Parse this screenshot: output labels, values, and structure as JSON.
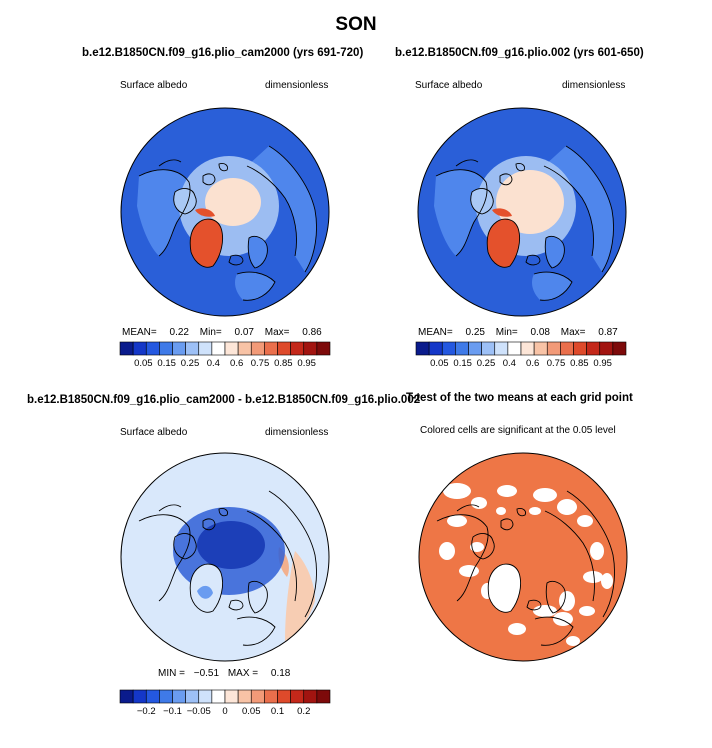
{
  "figure": {
    "title": "SON"
  },
  "panels": [
    {
      "title": "b.e12.B1850CN.f09_g16.plio_cam2000 (yrs 691-720)",
      "variable": "Surface albedo",
      "units": "dimensionless",
      "stats": {
        "mean_label": "MEAN=",
        "mean": "0.22",
        "min_label": "Min=",
        "min": "0.07",
        "max_label": "Max=",
        "max": "0.86"
      },
      "colorbar": {
        "labels": [
          "0.05",
          "0.15",
          "0.25",
          "0.4",
          "0.6",
          "0.75",
          "0.85",
          "0.95"
        ],
        "colors": [
          "#0a1b8c",
          "#1437c8",
          "#2458e0",
          "#3f7ae8",
          "#6a9cf0",
          "#9dc0f6",
          "#cfe2fb",
          "#ffffff",
          "#fde6d8",
          "#f8c3a6",
          "#f29a78",
          "#ea6f4c",
          "#de4a2b",
          "#c4281a",
          "#a21410",
          "#7d0a0a"
        ]
      }
    },
    {
      "title": "b.e12.B1850CN.f09_g16.plio.002 (yrs 601-650)",
      "variable": "Surface albedo",
      "units": "dimensionless",
      "stats": {
        "mean_label": "MEAN=",
        "mean": "0.25",
        "min_label": "Min=",
        "min": "0.08",
        "max_label": "Max=",
        "max": "0.87"
      },
      "colorbar": {
        "labels": [
          "0.05",
          "0.15",
          "0.25",
          "0.4",
          "0.6",
          "0.75",
          "0.85",
          "0.95"
        ],
        "colors": [
          "#0a1b8c",
          "#1437c8",
          "#2458e0",
          "#3f7ae8",
          "#6a9cf0",
          "#9dc0f6",
          "#cfe2fb",
          "#ffffff",
          "#fde6d8",
          "#f8c3a6",
          "#f29a78",
          "#ea6f4c",
          "#de4a2b",
          "#c4281a",
          "#a21410",
          "#7d0a0a"
        ]
      }
    },
    {
      "title": "b.e12.B1850CN.f09_g16.plio_cam2000 - b.e12.B1850CN.f09_g16.plio.002",
      "variable": "Surface albedo",
      "units": "dimensionless",
      "stats": {
        "min_label": "MIN =",
        "min": "−0.51",
        "max_label": "MAX =",
        "max": "0.18"
      },
      "colorbar": {
        "labels": [
          "−0.2",
          "−0.1",
          "−0.05",
          "0",
          "0.05",
          "0.1",
          "0.2"
        ],
        "colors": [
          "#0a1b8c",
          "#1437c8",
          "#2458e0",
          "#3f7ae8",
          "#6a9cf0",
          "#9dc0f6",
          "#cfe2fb",
          "#ffffff",
          "#fde6d8",
          "#f8c3a6",
          "#f29a78",
          "#ea6f4c",
          "#de4a2b",
          "#c4281a",
          "#a21410",
          "#7d0a0a"
        ]
      }
    },
    {
      "title": "T-test of the two means at each grid point",
      "subtitle": "Colored cells are significant at the 0.05 level",
      "fill_color": "#ee7646"
    }
  ],
  "map_colors": {
    "ocean_blue": "#2a5fd8",
    "mid_blue": "#4f86ec",
    "light_blue": "#a9c8f5",
    "ice_peach": "#fbe1d0",
    "greenland_red": "#e4512c",
    "diff_light": "#d9e8fb",
    "diff_blue": "#2f5fd6",
    "diff_pos": "#f7cdb3",
    "coast": "#000000"
  }
}
